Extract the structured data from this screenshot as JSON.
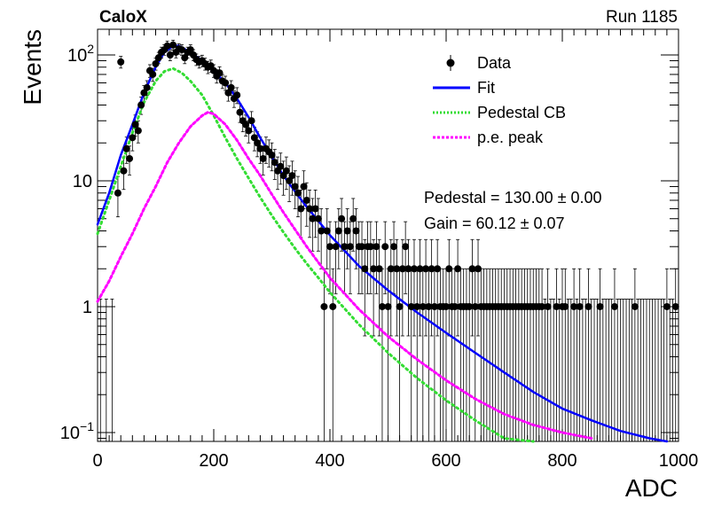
{
  "header": {
    "experiment": "CaloX",
    "run": "Run 1185"
  },
  "chart_data": {
    "type": "scatter",
    "title": "",
    "xlabel": "ADC",
    "ylabel": "Events",
    "xlim": [
      0,
      1000
    ],
    "ylim": [
      0.085,
      160
    ],
    "yscale": "log",
    "grid": false,
    "legend_position": "top-right",
    "x_ticks": [
      "0",
      "200",
      "400",
      "600",
      "800",
      "1000"
    ],
    "y_ticks": [
      {
        "value": 0.1,
        "label": "10^-1",
        "base": "10",
        "exp": "−1"
      },
      {
        "value": 1,
        "label": "1",
        "base": "1",
        "exp": ""
      },
      {
        "value": 10,
        "label": "10",
        "base": "10",
        "exp": ""
      },
      {
        "value": 100,
        "label": "10^2",
        "base": "10",
        "exp": "2"
      }
    ],
    "legend": [
      {
        "label": "Data",
        "style": "marker",
        "color": "#000000"
      },
      {
        "label": "Fit",
        "style": "line",
        "color": "#0000ff"
      },
      {
        "label": "Pedestal CB",
        "style": "dotted",
        "color": "#33dd33"
      },
      {
        "label": "p.e. peak",
        "style": "dashed",
        "color": "#ff00ff"
      }
    ],
    "annotations": [
      "Pedestal = 130.00 ± 0.00",
      "Gain = 60.12 ± 0.07"
    ],
    "colors": {
      "data": "#000000",
      "fit": "#0000ff",
      "pedestal": "#33dd33",
      "pe_peak": "#ff00ff"
    },
    "series": [
      {
        "name": "Data",
        "points": [
          [
            5,
            0
          ],
          [
            15,
            0
          ],
          [
            25,
            0
          ],
          [
            35,
            8
          ],
          [
            40,
            88
          ],
          [
            45,
            12
          ],
          [
            50,
            18
          ],
          [
            55,
            15
          ],
          [
            60,
            22
          ],
          [
            65,
            28
          ],
          [
            70,
            25
          ],
          [
            75,
            40
          ],
          [
            80,
            50
          ],
          [
            85,
            55
          ],
          [
            90,
            75
          ],
          [
            95,
            70
          ],
          [
            100,
            85
          ],
          [
            105,
            95
          ],
          [
            110,
            105
          ],
          [
            115,
            110
          ],
          [
            120,
            118
          ],
          [
            125,
            100
          ],
          [
            130,
            120
          ],
          [
            135,
            105
          ],
          [
            140,
            112
          ],
          [
            145,
            110
          ],
          [
            150,
            95
          ],
          [
            155,
            105
          ],
          [
            160,
            110
          ],
          [
            165,
            100
          ],
          [
            170,
            92
          ],
          [
            175,
            88
          ],
          [
            180,
            90
          ],
          [
            185,
            85
          ],
          [
            190,
            80
          ],
          [
            195,
            82
          ],
          [
            200,
            75
          ],
          [
            205,
            68
          ],
          [
            210,
            72
          ],
          [
            215,
            62
          ],
          [
            220,
            60
          ],
          [
            225,
            50
          ],
          [
            230,
            55
          ],
          [
            235,
            45
          ],
          [
            240,
            48
          ],
          [
            245,
            35
          ],
          [
            250,
            30
          ],
          [
            255,
            28
          ],
          [
            260,
            25
          ],
          [
            265,
            30
          ],
          [
            270,
            22
          ],
          [
            275,
            20
          ],
          [
            280,
            18
          ],
          [
            285,
            15
          ],
          [
            290,
            18
          ],
          [
            295,
            17
          ],
          [
            300,
            16
          ],
          [
            305,
            14
          ],
          [
            310,
            12
          ],
          [
            315,
            13
          ],
          [
            320,
            11
          ],
          [
            325,
            12
          ],
          [
            330,
            10
          ],
          [
            335,
            11
          ],
          [
            340,
            9
          ],
          [
            345,
            8
          ],
          [
            350,
            6
          ],
          [
            355,
            9
          ],
          [
            360,
            7
          ],
          [
            365,
            6
          ],
          [
            370,
            5
          ],
          [
            375,
            6
          ],
          [
            380,
            5
          ],
          [
            385,
            4
          ],
          [
            390,
            1
          ],
          [
            395,
            4
          ],
          [
            400,
            3
          ],
          [
            405,
            1
          ],
          [
            410,
            3
          ],
          [
            415,
            4
          ],
          [
            420,
            5
          ],
          [
            425,
            3
          ],
          [
            430,
            4
          ],
          [
            435,
            3
          ],
          [
            440,
            5
          ],
          [
            445,
            4
          ],
          [
            450,
            3
          ],
          [
            455,
            3
          ],
          [
            460,
            2
          ],
          [
            465,
            3
          ],
          [
            470,
            3
          ],
          [
            475,
            2
          ],
          [
            480,
            3
          ],
          [
            485,
            2
          ],
          [
            490,
            1
          ],
          [
            495,
            3
          ],
          [
            500,
            1
          ],
          [
            505,
            2
          ],
          [
            510,
            3
          ],
          [
            515,
            2
          ],
          [
            520,
            1
          ],
          [
            525,
            2
          ],
          [
            530,
            3
          ],
          [
            535,
            2
          ],
          [
            540,
            1
          ],
          [
            545,
            2
          ],
          [
            550,
            1
          ],
          [
            555,
            2
          ],
          [
            560,
            1
          ],
          [
            565,
            2
          ],
          [
            570,
            1
          ],
          [
            575,
            2
          ],
          [
            580,
            1
          ],
          [
            585,
            2
          ],
          [
            590,
            1
          ],
          [
            595,
            1
          ],
          [
            600,
            1
          ],
          [
            605,
            2
          ],
          [
            610,
            1
          ],
          [
            615,
            1
          ],
          [
            620,
            2
          ],
          [
            625,
            1
          ],
          [
            630,
            1
          ],
          [
            635,
            1
          ],
          [
            640,
            1
          ],
          [
            645,
            2
          ],
          [
            650,
            1
          ],
          [
            655,
            2
          ],
          [
            660,
            1
          ],
          [
            665,
            1
          ],
          [
            670,
            1
          ],
          [
            675,
            1
          ],
          [
            680,
            1
          ],
          [
            685,
            1
          ],
          [
            690,
            1
          ],
          [
            695,
            1
          ],
          [
            700,
            1
          ],
          [
            705,
            1
          ],
          [
            710,
            1
          ],
          [
            715,
            1
          ],
          [
            720,
            1
          ],
          [
            725,
            1
          ],
          [
            730,
            1
          ],
          [
            735,
            1
          ],
          [
            740,
            1
          ],
          [
            745,
            1
          ],
          [
            750,
            1
          ],
          [
            755,
            1
          ],
          [
            760,
            1
          ],
          [
            765,
            1
          ],
          [
            770,
            0
          ],
          [
            775,
            1
          ],
          [
            780,
            0
          ],
          [
            785,
            0
          ],
          [
            790,
            1
          ],
          [
            795,
            0
          ],
          [
            800,
            1
          ],
          [
            805,
            1
          ],
          [
            810,
            0
          ],
          [
            815,
            0
          ],
          [
            820,
            1
          ],
          [
            825,
            0
          ],
          [
            830,
            1
          ],
          [
            835,
            0
          ],
          [
            840,
            0
          ],
          [
            845,
            1
          ],
          [
            850,
            0
          ],
          [
            855,
            0
          ],
          [
            860,
            0
          ],
          [
            865,
            1
          ],
          [
            870,
            0
          ],
          [
            875,
            0
          ],
          [
            880,
            0
          ],
          [
            885,
            0
          ],
          [
            890,
            1
          ],
          [
            895,
            0
          ],
          [
            900,
            0
          ],
          [
            905,
            0
          ],
          [
            910,
            0
          ],
          [
            915,
            0
          ],
          [
            920,
            0
          ],
          [
            925,
            1
          ],
          [
            930,
            0
          ],
          [
            935,
            0
          ],
          [
            940,
            0
          ],
          [
            945,
            0
          ],
          [
            950,
            0
          ],
          [
            955,
            0
          ],
          [
            960,
            0
          ],
          [
            965,
            0
          ],
          [
            970,
            0
          ],
          [
            975,
            0
          ],
          [
            980,
            1
          ],
          [
            985,
            0
          ],
          [
            990,
            0
          ],
          [
            995,
            1
          ]
        ]
      },
      {
        "name": "Fit",
        "points": [
          [
            0,
            4.5
          ],
          [
            20,
            8
          ],
          [
            40,
            16
          ],
          [
            60,
            28
          ],
          [
            80,
            50
          ],
          [
            100,
            80
          ],
          [
            115,
            105
          ],
          [
            130,
            118
          ],
          [
            140,
            118
          ],
          [
            160,
            105
          ],
          [
            180,
            90
          ],
          [
            200,
            75
          ],
          [
            220,
            60
          ],
          [
            240,
            45
          ],
          [
            260,
            32
          ],
          [
            280,
            22
          ],
          [
            300,
            15.5
          ],
          [
            320,
            11
          ],
          [
            340,
            8.2
          ],
          [
            360,
            6.2
          ],
          [
            380,
            4.8
          ],
          [
            400,
            3.7
          ],
          [
            450,
            2.1
          ],
          [
            500,
            1.35
          ],
          [
            550,
            0.9
          ],
          [
            600,
            0.62
          ],
          [
            650,
            0.43
          ],
          [
            700,
            0.3
          ],
          [
            750,
            0.21
          ],
          [
            800,
            0.155
          ],
          [
            850,
            0.125
          ],
          [
            900,
            0.103
          ],
          [
            950,
            0.09
          ],
          [
            980,
            0.082
          ]
        ]
      },
      {
        "name": "Pedestal CB",
        "points": [
          [
            0,
            3.8
          ],
          [
            20,
            7
          ],
          [
            40,
            13
          ],
          [
            60,
            24
          ],
          [
            80,
            42
          ],
          [
            100,
            62
          ],
          [
            115,
            74
          ],
          [
            130,
            78
          ],
          [
            145,
            72
          ],
          [
            160,
            62
          ],
          [
            180,
            48
          ],
          [
            200,
            33
          ],
          [
            220,
            22
          ],
          [
            240,
            15
          ],
          [
            260,
            10.5
          ],
          [
            280,
            7.4
          ],
          [
            300,
            5.3
          ],
          [
            320,
            3.9
          ],
          [
            340,
            2.9
          ],
          [
            360,
            2.2
          ],
          [
            380,
            1.7
          ],
          [
            400,
            1.3
          ],
          [
            450,
            0.72
          ],
          [
            500,
            0.43
          ],
          [
            550,
            0.27
          ],
          [
            600,
            0.18
          ],
          [
            650,
            0.125
          ],
          [
            700,
            0.09
          ],
          [
            750,
            0.07
          ]
        ]
      },
      {
        "name": "p.e. peak",
        "points": [
          [
            0,
            1.1
          ],
          [
            20,
            1.6
          ],
          [
            40,
            2.5
          ],
          [
            60,
            3.8
          ],
          [
            80,
            6
          ],
          [
            100,
            9
          ],
          [
            120,
            14
          ],
          [
            140,
            20
          ],
          [
            160,
            27
          ],
          [
            180,
            33
          ],
          [
            190,
            35
          ],
          [
            200,
            34
          ],
          [
            220,
            28
          ],
          [
            240,
            21
          ],
          [
            260,
            15
          ],
          [
            280,
            11
          ],
          [
            300,
            7.8
          ],
          [
            320,
            5.6
          ],
          [
            340,
            4.1
          ],
          [
            360,
            3.0
          ],
          [
            380,
            2.25
          ],
          [
            400,
            1.7
          ],
          [
            450,
            0.95
          ],
          [
            500,
            0.58
          ],
          [
            550,
            0.38
          ],
          [
            600,
            0.26
          ],
          [
            650,
            0.185
          ],
          [
            700,
            0.14
          ],
          [
            750,
            0.115
          ],
          [
            800,
            0.1
          ],
          [
            850,
            0.09
          ]
        ]
      }
    ]
  }
}
